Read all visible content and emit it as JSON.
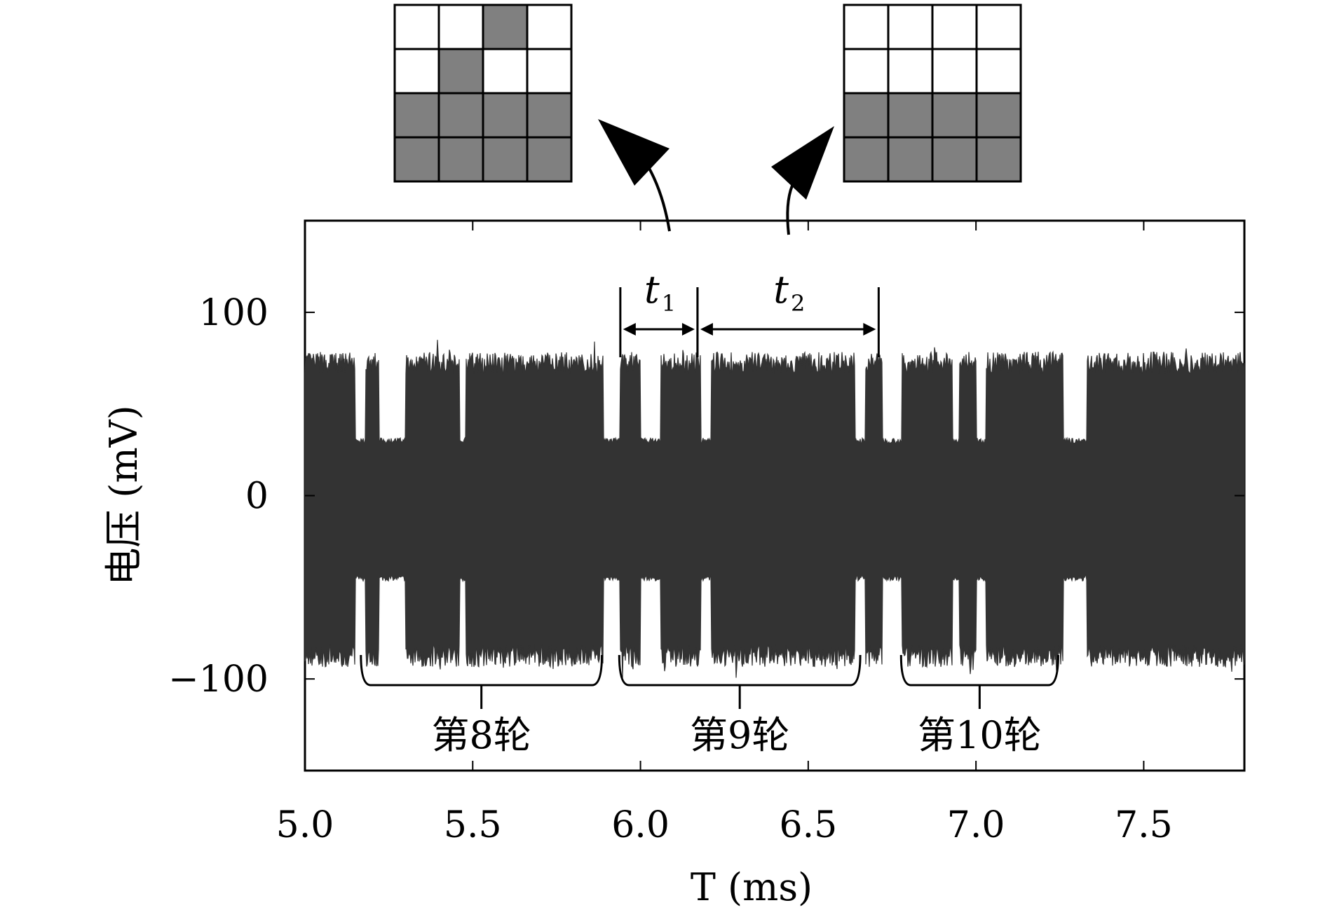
{
  "chart_data": {
    "type": "line",
    "xlabel": "T (ms)",
    "ylabel": "电压 (mV)",
    "xlim": [
      5.0,
      7.8
    ],
    "ylim": [
      -150,
      150
    ],
    "xticks": [
      "5.0",
      "5.5",
      "6.0",
      "6.5",
      "7.0",
      "7.5"
    ],
    "yticks": [
      "100",
      "0",
      "−100"
    ],
    "xtick_values": [
      5.0,
      5.5,
      6.0,
      6.5,
      7.0,
      7.5
    ],
    "ytick_values": [
      100,
      0,
      -100
    ],
    "grid": false,
    "signal_color": "#333333",
    "envelope": {
      "high_amplitude": 70,
      "low_amplitude": 30,
      "negative_high": -85,
      "negative_low": -45,
      "dip_intervals_ms": [
        [
          5.15,
          5.18
        ],
        [
          5.22,
          5.3
        ],
        [
          5.46,
          5.48
        ],
        [
          5.89,
          5.94
        ],
        [
          6.0,
          6.06
        ],
        [
          6.18,
          6.21
        ],
        [
          6.64,
          6.67
        ],
        [
          6.72,
          6.78
        ],
        [
          6.93,
          6.95
        ],
        [
          7.0,
          7.03
        ],
        [
          7.26,
          7.33
        ]
      ]
    },
    "annotations": {
      "t1_label": "t",
      "t1_sub": "1",
      "t1_range_ms": [
        5.94,
        6.17
      ],
      "t2_label": "t",
      "t2_sub": "2",
      "t2_range_ms": [
        6.17,
        6.71
      ],
      "rounds": [
        {
          "label": "第8轮",
          "range_ms": [
            5.15,
            5.86
          ]
        },
        {
          "label": "第9轮",
          "range_ms": [
            5.92,
            6.63
          ]
        },
        {
          "label": "第10轮",
          "range_ms": [
            6.76,
            7.22
          ]
        }
      ]
    },
    "insets": {
      "grid_color": "#808080",
      "left_grid": [
        [
          0,
          0,
          1,
          0
        ],
        [
          0,
          1,
          0,
          0
        ],
        [
          1,
          1,
          1,
          1
        ],
        [
          1,
          1,
          1,
          1
        ]
      ],
      "right_grid": [
        [
          0,
          0,
          0,
          0
        ],
        [
          0,
          0,
          0,
          0
        ],
        [
          1,
          1,
          1,
          1
        ],
        [
          1,
          1,
          1,
          1
        ]
      ]
    }
  }
}
